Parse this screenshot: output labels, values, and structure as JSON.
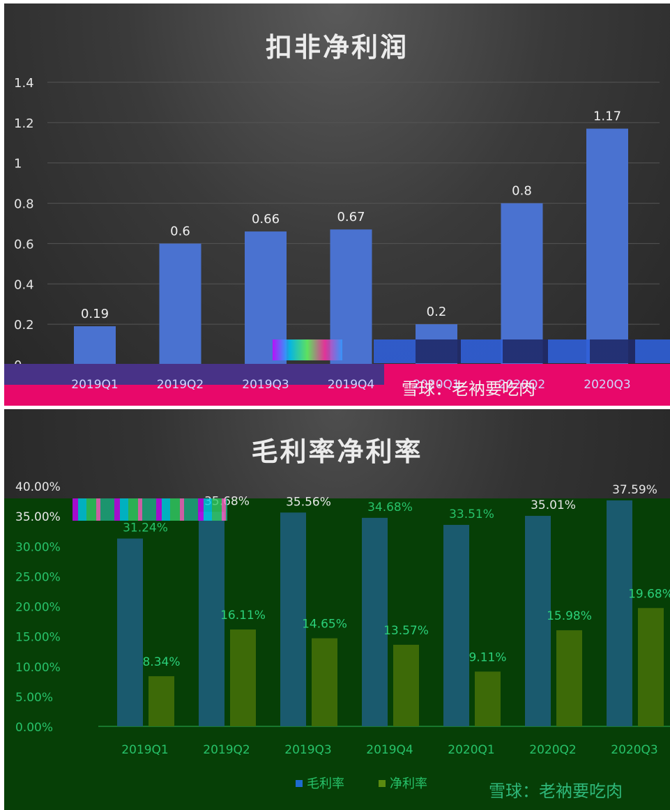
{
  "chart_data": [
    {
      "type": "bar",
      "title": "扣非净利润",
      "categories": [
        "2019Q1",
        "2019Q2",
        "2019Q3",
        "2019Q4",
        "2020Q1",
        "2020Q2",
        "2020Q3"
      ],
      "values": [
        0.19,
        0.6,
        0.66,
        0.67,
        0.2,
        0.8,
        1.17
      ],
      "value_labels": [
        "0.19",
        "0.6",
        "0.66",
        "0.67",
        "0.2",
        "0.8",
        "1.17"
      ],
      "yticks": [
        "0",
        "0.2",
        "0.4",
        "0.6",
        "0.8",
        "1",
        "1.2",
        "1.4"
      ],
      "ylim": [
        0,
        1.4
      ],
      "grid": true,
      "bar_color": "#4a72d0",
      "watermark": "雪球：老衲要吃肉"
    },
    {
      "type": "bar",
      "title": "毛利率净利率",
      "categories": [
        "2019Q1",
        "2019Q2",
        "2019Q3",
        "2019Q4",
        "2020Q1",
        "2020Q2",
        "2020Q3"
      ],
      "series": [
        {
          "name": "毛利率",
          "values": [
            31.24,
            35.68,
            35.56,
            34.68,
            33.51,
            35.01,
            37.59
          ],
          "labels": [
            "31.24%",
            "35.68%",
            "35.56%",
            "34.68%",
            "33.51%",
            "35.01%",
            "37.59%"
          ],
          "color": "#1a5a6e"
        },
        {
          "name": "净利率",
          "values": [
            8.34,
            16.11,
            14.65,
            13.57,
            9.11,
            15.98,
            19.68
          ],
          "labels": [
            "8.34%",
            "16.11%",
            "14.65%",
            "13.57%",
            "9.11%",
            "15.98%",
            "19.68%"
          ],
          "color": "#3d6a08"
        }
      ],
      "yticks": [
        "0.00%",
        "5.00%",
        "10.00%",
        "15.00%",
        "20.00%",
        "25.00%",
        "30.00%",
        "35.00%",
        "40.00%"
      ],
      "ylim": [
        0,
        40
      ],
      "legend": "bottom",
      "watermark": "雪球：老衲要吃肉"
    }
  ]
}
